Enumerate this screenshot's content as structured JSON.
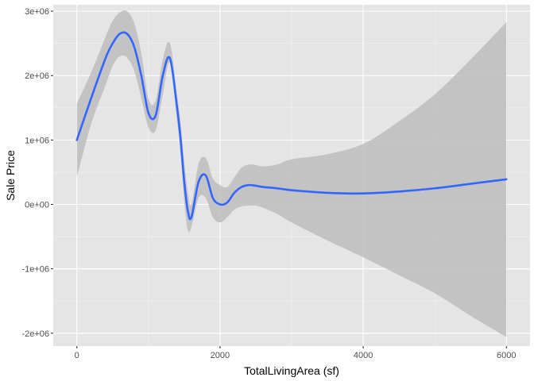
{
  "chart_data": {
    "type": "line",
    "title": "",
    "xlabel": "TotalLivingArea (sf)",
    "ylabel": "Sale Price",
    "xlim": [
      -330,
      6330
    ],
    "ylim": [
      -2200000,
      3100000
    ],
    "x_ticks": [
      0,
      2000,
      4000,
      6000
    ],
    "x_tick_labels": [
      "0",
      "2000",
      "4000",
      "6000"
    ],
    "y_ticks": [
      -2000000,
      -1000000,
      0,
      1000000,
      2000000,
      3000000
    ],
    "y_tick_labels": [
      "-2e+06",
      "-1e+06",
      "0e+00",
      "1e+06",
      "2e+06",
      "3e+06"
    ],
    "grid": true,
    "legend": "none",
    "series": [
      {
        "x": [
          0,
          200,
          400,
          500,
          600,
          700,
          800,
          900,
          1000,
          1100,
          1200,
          1300,
          1400,
          1450,
          1500,
          1550,
          1600,
          1700,
          1800,
          1900,
          2000,
          2100,
          2200,
          2300,
          2400,
          2500,
          2600,
          2800,
          3000,
          3500,
          4000,
          4500,
          5000,
          5500,
          6000
        ],
        "y": [
          1000000,
          1650000,
          2270000,
          2500000,
          2650000,
          2650000,
          2450000,
          2000000,
          1420000,
          1380000,
          2000000,
          2270000,
          1500000,
          1000000,
          350000,
          -100000,
          -200000,
          350000,
          450000,
          100000,
          0,
          30000,
          180000,
          270000,
          300000,
          290000,
          270000,
          250000,
          220000,
          180000,
          170000,
          200000,
          250000,
          320000,
          390000
        ],
        "lower": [
          430000,
          1250000,
          1850000,
          2150000,
          2300000,
          2280000,
          2080000,
          1650000,
          1200000,
          1150000,
          1700000,
          2200000,
          1300000,
          750000,
          50000,
          -400000,
          -350000,
          100000,
          100000,
          -200000,
          -280000,
          -200000,
          -80000,
          -30000,
          -20000,
          -20000,
          -50000,
          -150000,
          -280000,
          -560000,
          -820000,
          -1100000,
          -1380000,
          -1730000,
          -2060000
        ],
        "upper": [
          1570000,
          2050000,
          2600000,
          2850000,
          2980000,
          3000000,
          2820000,
          2350000,
          1640000,
          1610000,
          2250000,
          2500000,
          1700000,
          1250000,
          650000,
          200000,
          0,
          630000,
          720000,
          400000,
          300000,
          270000,
          420000,
          570000,
          620000,
          610000,
          590000,
          620000,
          700000,
          780000,
          940000,
          1290000,
          1710000,
          2250000,
          2830000
        ]
      }
    ],
    "colors": {
      "panel": "#e5e5e5",
      "grid_major": "#ffffff",
      "line": "#3366ff",
      "ribbon": "#bdbdbd"
    }
  }
}
